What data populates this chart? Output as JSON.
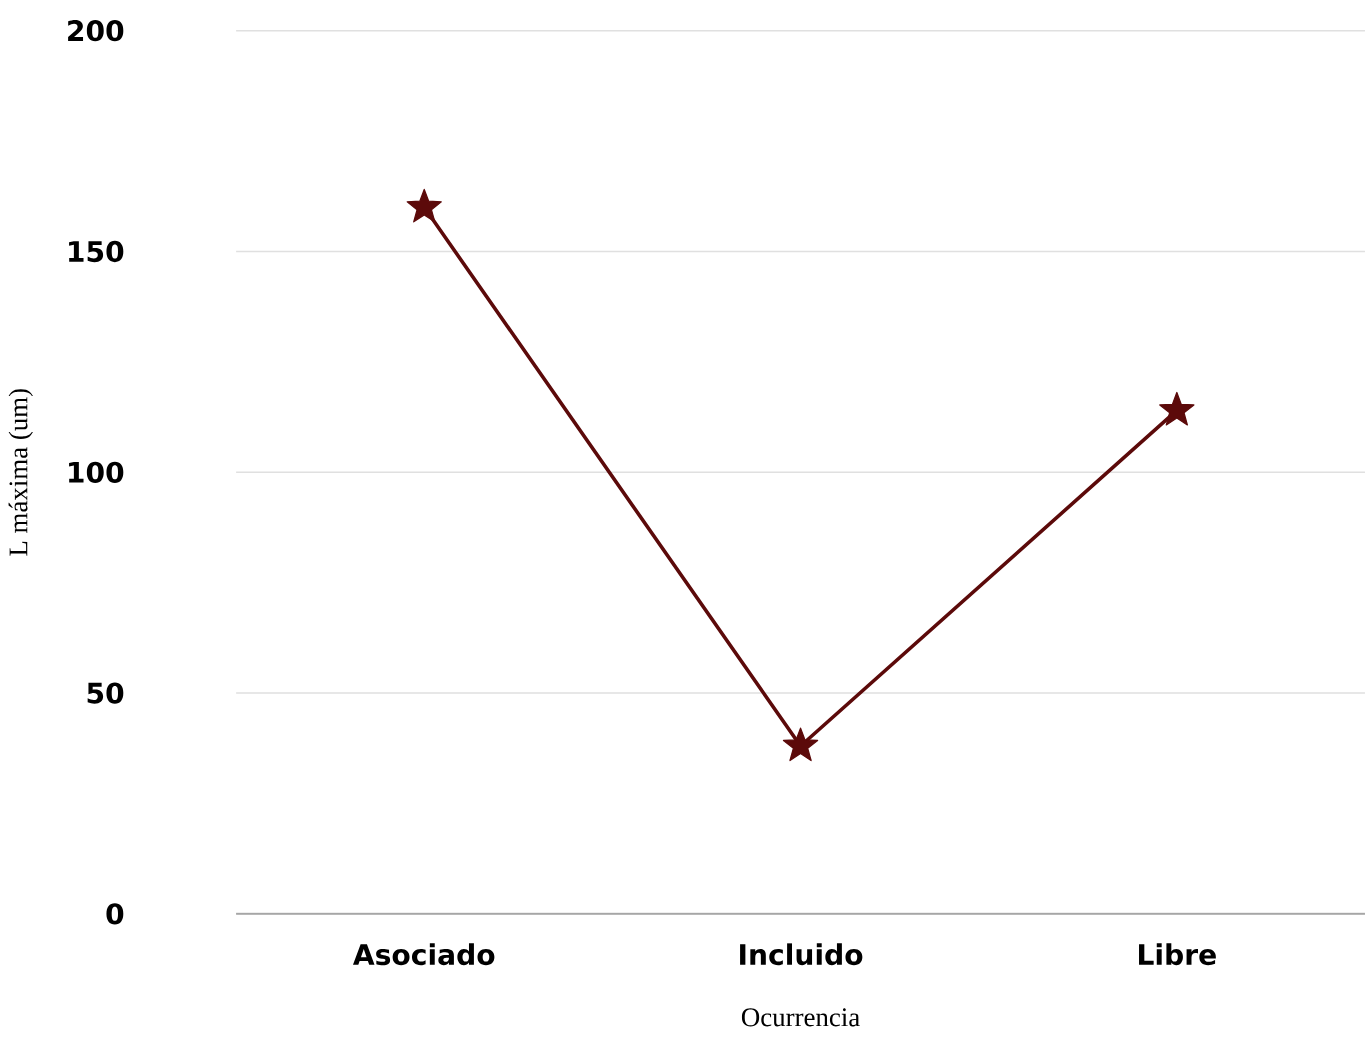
{
  "chart_data": {
    "type": "line",
    "xlabel": "Ocurrencia",
    "ylabel": "L máxima (um)",
    "categories": [
      "Asociado",
      "Incluido",
      "Libre"
    ],
    "series": [
      {
        "color": "#5c0a0a",
        "values": [
          160,
          38,
          114
        ]
      }
    ],
    "ylim": [
      0,
      200
    ],
    "yticks": [
      0,
      50,
      100,
      150,
      200
    ],
    "grid": "y",
    "marker": "star",
    "line_style": "solid"
  }
}
